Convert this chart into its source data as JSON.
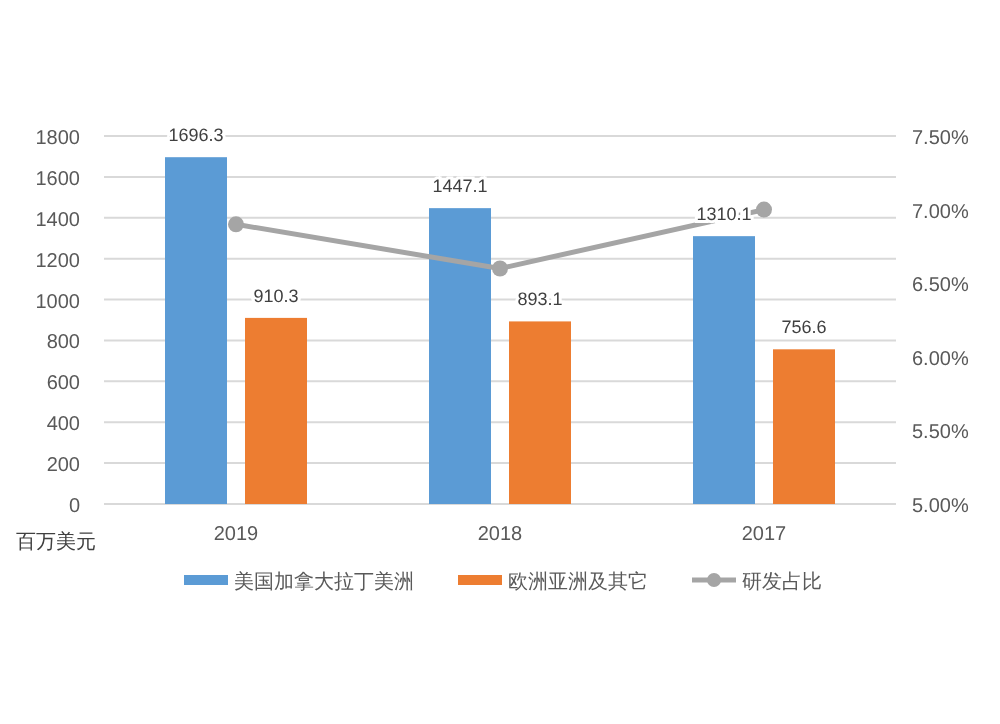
{
  "chart_data": {
    "type": "bar",
    "ylabel": "百万美元",
    "categories": [
      "2019",
      "2018",
      "2017"
    ],
    "series": [
      {
        "name": "美国加拿大拉丁美洲",
        "color": "#5b9bd5",
        "values": [
          1696.3,
          1447.1,
          1310.1
        ],
        "value_labels": [
          "1696.3",
          "1447.1",
          "1310.1"
        ]
      },
      {
        "name": "欧洲亚洲及其它",
        "color": "#ed7d31",
        "values": [
          910.3,
          893.1,
          756.6
        ],
        "value_labels": [
          "910.3",
          "893.1",
          "756.6"
        ]
      },
      {
        "name": "研发占比",
        "type": "line",
        "axis": "y2",
        "color": "#a5a5a5",
        "marker": "circle",
        "values": [
          6.9,
          6.6,
          7.0
        ]
      }
    ],
    "ylim": [
      0,
      1800
    ],
    "yticks": [
      0,
      200,
      400,
      600,
      800,
      1000,
      1200,
      1400,
      1600,
      1800
    ],
    "y2lim": [
      5,
      7.5
    ],
    "y2ticks": [
      {
        "value": 5,
        "label": "5.00%"
      },
      {
        "value": 5.5,
        "label": "5.50%"
      },
      {
        "value": 6,
        "label": "6.00%"
      },
      {
        "value": 6.5,
        "label": "6.50%"
      },
      {
        "value": 7,
        "label": "7.00%"
      },
      {
        "value": 7.5,
        "label": "7.50%"
      }
    ],
    "grid": "y",
    "legend": "bottom"
  }
}
